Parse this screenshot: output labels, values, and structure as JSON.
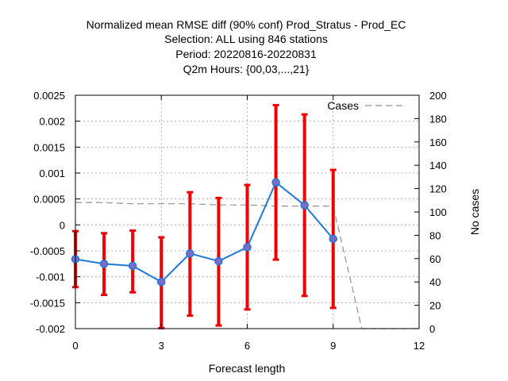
{
  "chart_data": {
    "type": "line",
    "title_lines": [
      "Normalized mean RMSE diff (90% conf) Prod_Stratus - Prod_EC",
      "Selection: ALL using   846 stations",
      "Period: 20220816-20220831",
      "Q2m   Hours: {00,03,...,21}"
    ],
    "xlabel": "Forecast length",
    "ylabel": "",
    "y2label": "No cases",
    "xlim": [
      0,
      12
    ],
    "ylim": [
      -0.002,
      0.0025
    ],
    "y2lim": [
      0,
      200
    ],
    "xticks": [
      0,
      3,
      6,
      9,
      12
    ],
    "xtick_labels": [
      "0",
      "3",
      "6",
      "9",
      "12"
    ],
    "yticks": [
      -0.002,
      -0.0015,
      -0.001,
      -0.0005,
      0,
      0.0005,
      0.001,
      0.0015,
      0.002,
      0.0025
    ],
    "ytick_labels": [
      "-0.002",
      "-0.0015",
      "-0.001",
      "-0.0005",
      "0",
      "0.0005",
      "0.001",
      "0.0015",
      "0.002",
      "0.0025"
    ],
    "y2ticks": [
      0,
      20,
      40,
      60,
      80,
      100,
      120,
      140,
      160,
      180,
      200
    ],
    "y2tick_labels": [
      "0",
      "20",
      "40",
      "60",
      "80",
      "100",
      "120",
      "140",
      "160",
      "180",
      "200"
    ],
    "grid": true,
    "legend_position": "top-right",
    "series": [
      {
        "name": "",
        "color": "#1e78dc",
        "marker_color": "#7a6cc8",
        "x": [
          0,
          1,
          2,
          3,
          4,
          5,
          6,
          7,
          8,
          9
        ],
        "values": [
          -0.00066,
          -0.00075,
          -0.00079,
          -0.0011,
          -0.00055,
          -0.0007,
          -0.00043,
          0.00082,
          0.00038,
          -0.00027
        ]
      },
      {
        "name": "Cases",
        "color": "#909090",
        "axis": "right",
        "x": [
          0,
          1,
          2,
          3,
          4,
          5,
          6,
          7,
          8,
          9,
          10,
          11,
          12
        ],
        "values": [
          108,
          108,
          107,
          107,
          107,
          106,
          106,
          105,
          105,
          105,
          0,
          0,
          0
        ]
      }
    ],
    "error_bars": {
      "color": "#ee0000",
      "x": [
        0,
        1,
        2,
        3,
        4,
        5,
        6,
        7,
        8,
        9
      ],
      "low": [
        -0.0012,
        -0.00135,
        -0.0013,
        -0.00199,
        -0.00175,
        -0.00194,
        -0.00163,
        -0.00067,
        -0.00137,
        -0.0016
      ],
      "high": [
        -0.00012,
        -0.00016,
        -0.00011,
        -0.00024,
        0.00063,
        0.00052,
        0.00077,
        0.00231,
        0.00213,
        0.00106
      ]
    }
  }
}
